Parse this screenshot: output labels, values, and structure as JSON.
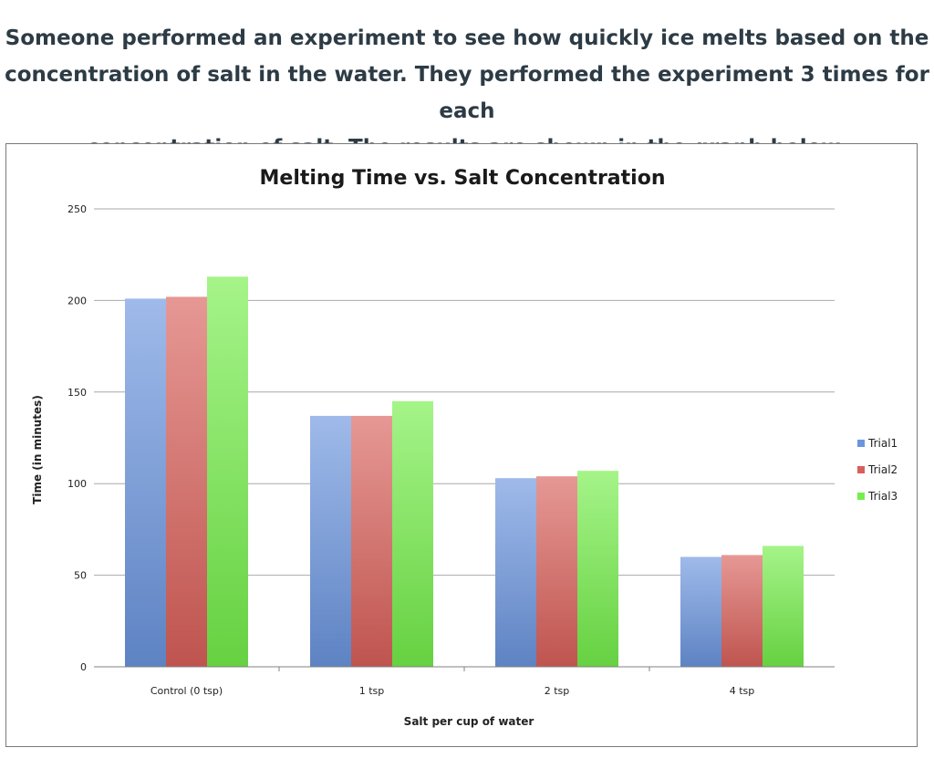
{
  "question": {
    "line1": "Someone performed an experiment to see how quickly ice melts based on the",
    "line2": "concentration of salt in the water. They performed the experiment 3 times for each",
    "line3": "concentration of salt.  The results are shown in the graph below."
  },
  "chart_data": {
    "type": "bar",
    "title": "Melting Time vs. Salt Concentration",
    "xlabel": "Salt per cup of water",
    "ylabel": "Time (in minutes)",
    "ylim": [
      0,
      250
    ],
    "yticks": [
      0,
      50,
      100,
      150,
      200,
      250
    ],
    "categories": [
      "Control (0 tsp)",
      "1 tsp",
      "2 tsp",
      "4 tsp"
    ],
    "series": [
      {
        "name": "Trial1",
        "values": [
          201,
          137,
          103,
          60
        ],
        "color": "#6b95de"
      },
      {
        "name": "Trial2",
        "values": [
          202,
          137,
          104,
          61
        ],
        "color": "#d9605a"
      },
      {
        "name": "Trial3",
        "values": [
          213,
          145,
          107,
          66
        ],
        "color": "#74ee4a"
      }
    ],
    "grid": true,
    "legend_position": "right"
  }
}
